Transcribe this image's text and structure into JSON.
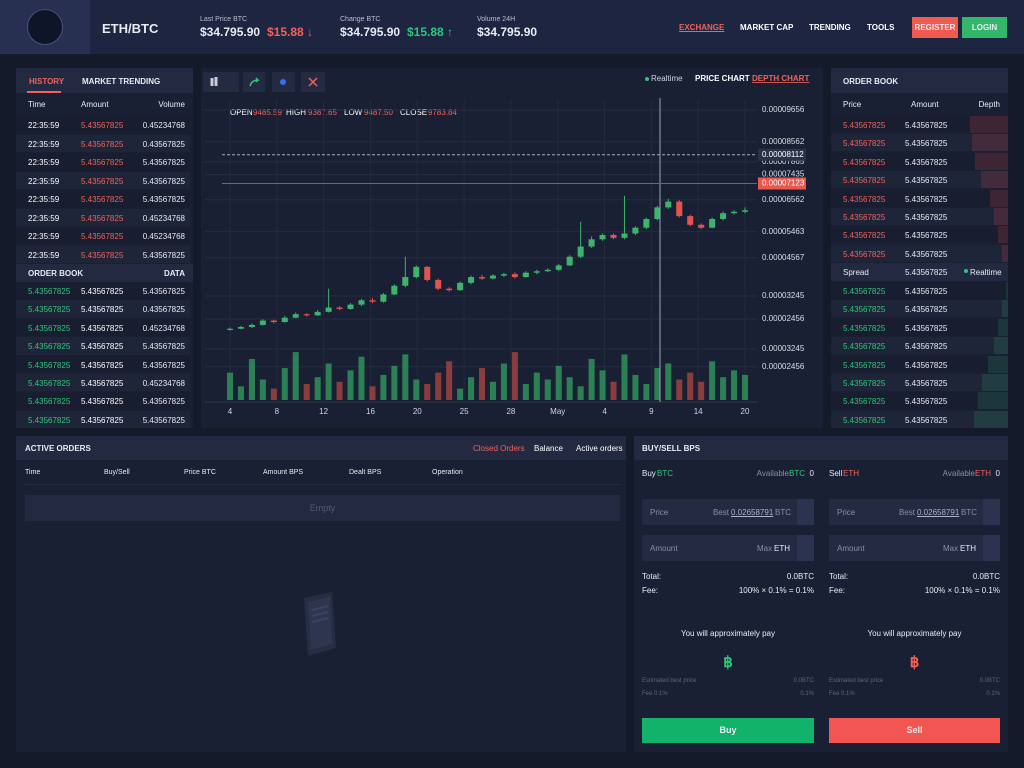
{
  "header": {
    "pair": "ETH/BTC",
    "stats": [
      {
        "label": "Last Price BTC",
        "value": "$34.795.90",
        "change": "$15.88 ↓"
      },
      {
        "label": "Change BTC",
        "value": "$34.795.90",
        "change": "$15.88 ↑"
      },
      {
        "label": "Volume 24H",
        "value": "$34.795.90"
      }
    ],
    "nav": [
      "EXCHANGE",
      "MARKET CAP",
      "TRENDING",
      "TOOLS"
    ],
    "register": "REGISTER",
    "login": "LOGIN"
  },
  "history": {
    "tabs": [
      "HISTORY",
      "MARKET TRENDING"
    ],
    "columns": [
      "Time",
      "Amount",
      "Volume"
    ],
    "rows": [
      [
        "22:35:59",
        "5.43567825",
        "0.45234768"
      ],
      [
        "22:35:59",
        "5.43567825",
        "0.43567825"
      ],
      [
        "22:35:59",
        "5.43567825",
        "5.43567825"
      ],
      [
        "22:35:59",
        "5.43567825",
        "5.43567825"
      ],
      [
        "22:35:59",
        "5.43567825",
        "5.43567825"
      ],
      [
        "22:35:59",
        "5.43567825",
        "0.45234768"
      ],
      [
        "22:35:59",
        "5.43567825",
        "0.45234768"
      ],
      [
        "22:35:59",
        "5.43567825",
        "5.43567825"
      ]
    ]
  },
  "side_book": {
    "title": "ORDER BOOK",
    "data": "DATA",
    "rows": [
      [
        "5.43567825",
        "5.43567825",
        "5.43567825"
      ],
      [
        "5.43567825",
        "5.43567825",
        "0.43567825"
      ],
      [
        "5.43567825",
        "5.43567825",
        "0.45234768"
      ],
      [
        "5.43567825",
        "5.43567825",
        "5.43567825"
      ],
      [
        "5.43567825",
        "5.43567825",
        "5.43567825"
      ],
      [
        "5.43567825",
        "5.43567825",
        "0.45234768"
      ],
      [
        "5.43567825",
        "5.43567825",
        "5.43567825"
      ],
      [
        "5.43567825",
        "5.43567825",
        "5.43567825"
      ]
    ]
  },
  "price_chart": {
    "realtime": "Realtime",
    "tabs": [
      "PRICE CHART",
      "DEPTH CHART"
    ],
    "ohlc": [
      {
        "label": "OPEN",
        "value": "9485.59"
      },
      {
        "label": "HIGH",
        "value": "9387.65"
      },
      {
        "label": "LOW",
        "value": "9487.50"
      },
      {
        "label": "CLOSE",
        "value": "9783.84"
      }
    ],
    "ylim": [
      1.8e-05,
      0.0001
    ],
    "yticks": [
      {
        "value": 9.656e-05,
        "label": "0.00009656"
      },
      {
        "value": 8.562e-05,
        "label": "0.00008562"
      },
      {
        "value": 7.865e-05,
        "label": "0.00007865"
      },
      {
        "value": 7.435e-05,
        "label": "0.00007435"
      },
      {
        "value": 6.562e-05,
        "label": "0.00006562"
      },
      {
        "value": 5.463e-05,
        "label": "0.00005463"
      },
      {
        "value": 4.567e-05,
        "label": "0.00004567"
      },
      {
        "value": 3.245e-05,
        "label": "0.00003245"
      },
      {
        "value": 2.456e-05,
        "label": "0.00002456"
      }
    ],
    "price_lines": [
      {
        "value": 8.112e-05,
        "label": "0.00008112"
      },
      {
        "value": 7.123e-05,
        "label": "0.00007123"
      }
    ],
    "volume_lim": [
      1e-05,
      3.5e-05
    ],
    "volume_ticks": [
      {
        "value": 3.245e-05,
        "label": "0.00003245"
      },
      {
        "value": 2.456e-05,
        "label": "0.00002456"
      }
    ],
    "x_labels": [
      "4",
      "8",
      "12",
      "16",
      "20",
      "25",
      "28",
      "May",
      "4",
      "9",
      "14",
      "20"
    ],
    "candles": [
      [
        2.08e-05,
        2.16e-05,
        2.05e-05,
        2.12e-05
      ],
      [
        2.12e-05,
        2.22e-05,
        2.1e-05,
        2.18e-05
      ],
      [
        2.18e-05,
        2.3e-05,
        2.15e-05,
        2.25e-05
      ],
      [
        2.25e-05,
        2.45e-05,
        2.23e-05,
        2.4e-05
      ],
      [
        2.4e-05,
        2.43e-05,
        2.3e-05,
        2.35e-05
      ],
      [
        2.35e-05,
        2.56e-05,
        2.33e-05,
        2.5e-05
      ],
      [
        2.5e-05,
        2.68e-05,
        2.48e-05,
        2.62e-05
      ],
      [
        2.62e-05,
        2.65e-05,
        2.54e-05,
        2.58e-05
      ],
      [
        2.58e-05,
        2.76e-05,
        2.56e-05,
        2.7e-05
      ],
      [
        2.7e-05,
        3.5e-05,
        2.68e-05,
        2.85e-05
      ],
      [
        2.85e-05,
        2.9e-05,
        2.76e-05,
        2.8e-05
      ],
      [
        2.8e-05,
        3e-05,
        2.78e-05,
        2.95e-05
      ],
      [
        2.95e-05,
        3.15e-05,
        2.9e-05,
        3.1e-05
      ],
      [
        3.1e-05,
        3.18e-05,
        3e-05,
        3.05e-05
      ],
      [
        3.05e-05,
        3.35e-05,
        3.02e-05,
        3.3e-05
      ],
      [
        3.3e-05,
        3.65e-05,
        3.28e-05,
        3.6e-05
      ],
      [
        3.6e-05,
        4.6e-05,
        3.55e-05,
        3.9e-05
      ],
      [
        3.9e-05,
        4.3e-05,
        3.85e-05,
        4.25e-05
      ],
      [
        4.25e-05,
        4.28e-05,
        3.75e-05,
        3.8e-05
      ],
      [
        3.8e-05,
        3.85e-05,
        3.45e-05,
        3.5e-05
      ],
      [
        3.5e-05,
        3.55e-05,
        3.4e-05,
        3.45e-05
      ],
      [
        3.45e-05,
        3.75e-05,
        3.42e-05,
        3.7e-05
      ],
      [
        3.7e-05,
        3.95e-05,
        3.65e-05,
        3.9e-05
      ],
      [
        3.9e-05,
        3.98e-05,
        3.8e-05,
        3.85e-05
      ],
      [
        3.85e-05,
        4e-05,
        3.82e-05,
        3.95e-05
      ],
      [
        3.95e-05,
        4.05e-05,
        3.9e-05,
        4e-05
      ],
      [
        4e-05,
        4.06e-05,
        3.85e-05,
        3.9e-05
      ],
      [
        3.9e-05,
        4.1e-05,
        3.88e-05,
        4.05e-05
      ],
      [
        4.05e-05,
        4.15e-05,
        4e-05,
        4.1e-05
      ],
      [
        4.1e-05,
        4.2e-05,
        4.08e-05,
        4.15e-05
      ],
      [
        4.15e-05,
        4.35e-05,
        4.1e-05,
        4.3e-05
      ],
      [
        4.3e-05,
        4.65e-05,
        4.28e-05,
        4.6e-05
      ],
      [
        4.6e-05,
        5.8e-05,
        4.55e-05,
        4.95e-05
      ],
      [
        4.95e-05,
        5.3e-05,
        4.9e-05,
        5.2e-05
      ],
      [
        5.2e-05,
        5.4e-05,
        5.15e-05,
        5.35e-05
      ],
      [
        5.35e-05,
        5.4e-05,
        5.2e-05,
        5.25e-05
      ],
      [
        5.25e-05,
        6.7e-05,
        5.2e-05,
        5.4e-05
      ],
      [
        5.4e-05,
        5.65e-05,
        5.35e-05,
        5.6e-05
      ],
      [
        5.6e-05,
        5.95e-05,
        5.55e-05,
        5.9e-05
      ],
      [
        5.9e-05,
        6.35e-05,
        5.85e-05,
        6.3e-05
      ],
      [
        6.3e-05,
        6.6e-05,
        6.25e-05,
        6.5e-05
      ],
      [
        6.5e-05,
        6.55e-05,
        5.95e-05,
        6e-05
      ],
      [
        6e-05,
        6.05e-05,
        5.65e-05,
        5.7e-05
      ],
      [
        5.7e-05,
        5.75e-05,
        5.55e-05,
        5.6e-05
      ],
      [
        5.6e-05,
        5.95e-05,
        5.58e-05,
        5.9e-05
      ],
      [
        5.9e-05,
        6.15e-05,
        5.85e-05,
        6.1e-05
      ],
      [
        6.1e-05,
        6.2e-05,
        6.05e-05,
        6.15e-05
      ],
      [
        6.15e-05,
        6.3e-05,
        6.1e-05,
        6.2e-05
      ]
    ],
    "volumes": [
      2.2e-05,
      1.6e-05,
      2.8e-05,
      1.9e-05,
      1.5e-05,
      2.4e-05,
      3.1e-05,
      1.7e-05,
      2e-05,
      2.6e-05,
      1.8e-05,
      2.3e-05,
      2.9e-05,
      1.6e-05,
      2.1e-05,
      2.5e-05,
      3e-05,
      1.9e-05,
      1.7e-05,
      2.2e-05,
      2.7e-05,
      1.5e-05,
      2e-05,
      2.4e-05,
      1.8e-05,
      2.6e-05,
      3.1e-05,
      1.7e-05,
      2.2e-05,
      1.9e-05,
      2.5e-05,
      2e-05,
      1.6e-05,
      2.8e-05,
      2.3e-05,
      1.8e-05,
      3e-05,
      2.1e-05,
      1.7e-05,
      2.4e-05,
      2.6e-05,
      1.9e-05,
      2.2e-05,
      1.8e-05,
      2.7e-05,
      2e-05,
      2.3e-05,
      2.1e-05
    ]
  },
  "order_book": {
    "title": "ORDER BOOK",
    "columns": [
      "Price",
      "Amount",
      "Depth"
    ],
    "asks": [
      [
        "5.43567825",
        "5.43567825"
      ],
      [
        "5.43567825",
        "5.43567825"
      ],
      [
        "5.43567825",
        "5.43567825"
      ],
      [
        "5.43567825",
        "5.43567825"
      ],
      [
        "5.43567825",
        "5.43567825"
      ],
      [
        "5.43567825",
        "5.43567825"
      ],
      [
        "5.43567825",
        "5.43567825"
      ],
      [
        "5.43567825",
        "5.43567825"
      ]
    ],
    "ask_depth": [
      38,
      36,
      33,
      27,
      18,
      14,
      10,
      6
    ],
    "spread": {
      "label": "Spread",
      "value": "5.43567825",
      "status": "Realtime"
    },
    "bids": [
      [
        "5.43567825",
        "5.43567825"
      ],
      [
        "5.43567825",
        "5.43567825"
      ],
      [
        "5.43567825",
        "5.43567825"
      ],
      [
        "5.43567825",
        "5.43567825"
      ],
      [
        "5.43567825",
        "5.43567825"
      ],
      [
        "5.43567825",
        "5.43567825"
      ],
      [
        "5.43567825",
        "5.43567825"
      ],
      [
        "5.43567825",
        "5.43567825"
      ]
    ],
    "bid_depth": [
      2,
      6,
      10,
      14,
      20,
      26,
      30,
      34
    ]
  },
  "active_orders": {
    "title": "ACTIVE ORDERS",
    "tabs": [
      "Closed Orders",
      "Balance",
      "Active orders"
    ],
    "columns": [
      "Time",
      "Buy/Sell",
      "Price BTC",
      "Amount BPS",
      "Dealt BPS",
      "Operation"
    ],
    "empty": "Empty"
  },
  "trade": {
    "title": "BUY/SELL BPS",
    "forms": [
      {
        "side": "Buy",
        "asset": "BTC",
        "available": "Available",
        "avail_asset": "BTC",
        "avail_value": "0",
        "price": "Price",
        "best": "Best",
        "best_value": "0.02658791",
        "best_unit": "BTC",
        "amount": "Amount",
        "max": "Max",
        "max_unit": "ETH",
        "total_label": "Total:",
        "total": "0.0BTC",
        "fee_label": "Fee:",
        "fee": "100% × 0.1% = 0.1%",
        "pay": "You will approximately pay",
        "icon": "฿",
        "est_label": "Estimated best price",
        "est": "0.0BTC",
        "fee2_label": "Fee 0.1%",
        "fee2": "0.1%",
        "button": "Buy"
      },
      {
        "side": "Sell",
        "asset": "ETH",
        "available": "Available",
        "avail_asset": "ETH",
        "avail_value": "0",
        "price": "Price",
        "best": "Best",
        "best_value": "0.02658791",
        "best_unit": "BTC",
        "amount": "Amount",
        "max": "Max",
        "max_unit": "ETH",
        "total_label": "Total:",
        "total": "0.0BTC",
        "fee_label": "Fee:",
        "fee": "100% × 0.1% = 0.1%",
        "pay": "You will approximately pay",
        "icon": "฿",
        "est_label": "Estimated best price",
        "est": "0.0BTC",
        "fee2_label": "Fee 0.1%",
        "fee2": "0.1%",
        "button": "Sell"
      }
    ]
  }
}
